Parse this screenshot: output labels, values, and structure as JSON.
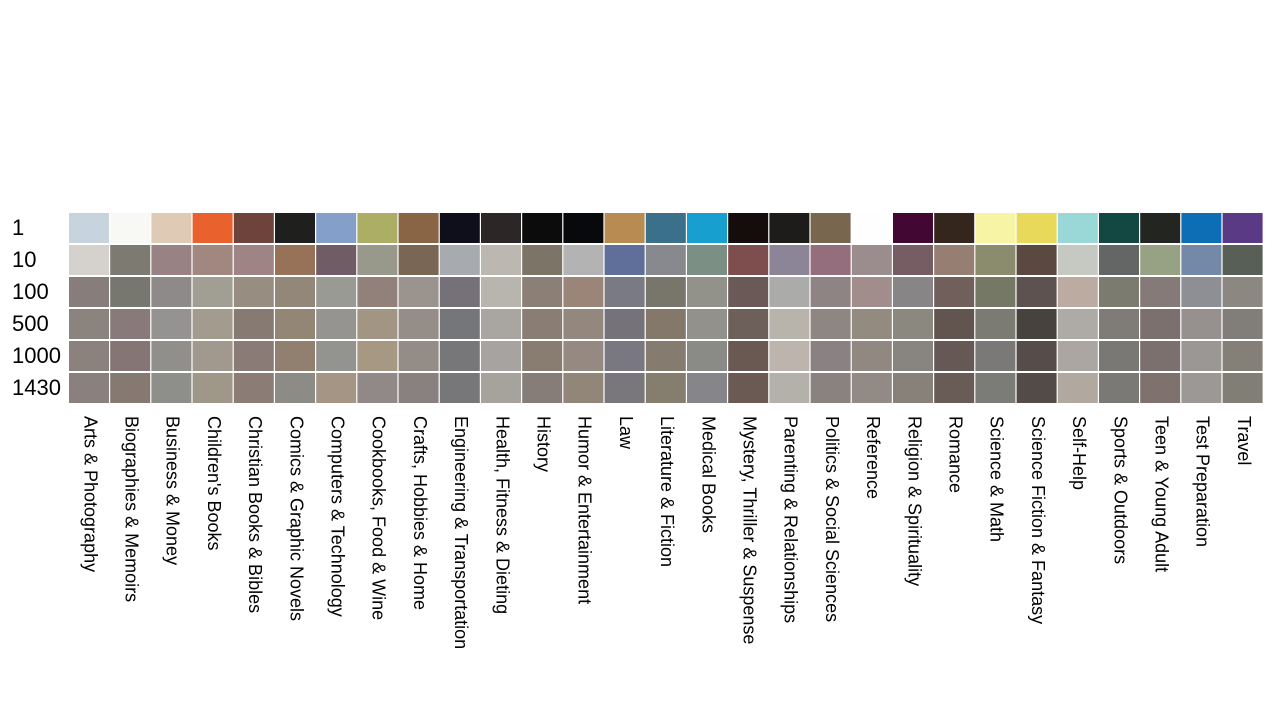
{
  "chart_data": {
    "type": "heatmap",
    "title": "",
    "xlabel": "",
    "ylabel": "",
    "row_labels": [
      "1",
      "10",
      "100",
      "500",
      "1000",
      "1430"
    ],
    "categories": [
      "Arts & Photography",
      "Biographies & Memoirs",
      "Business & Money",
      "Children's Books",
      "Christian Books & Bibles",
      "Comics & Graphic Novels",
      "Computers & Technology",
      "Cookbooks, Food & Wine",
      "Crafts, Hobbies & Home",
      "Engineering & Transportation",
      "Health, Fitness & Dieting",
      "History",
      "Humor & Entertainment",
      "Law",
      "Literature & Fiction",
      "Medical Books",
      "Mystery, Thriller & Suspense",
      "Parenting & Relationships",
      "Politics & Social Sciences",
      "Reference",
      "Religion & Spirituality",
      "Romance",
      "Science & Math",
      "Science Fiction & Fantasy",
      "Self-Help",
      "Sports & Outdoors",
      "Teen & Young Adult",
      "Test Preparation",
      "Travel"
    ],
    "cell_colors": [
      [
        "#c7d3dd",
        "#f8f8f4",
        "#dfcab6",
        "#e9622e",
        "#6e433b",
        "#1f201e",
        "#84a0c9",
        "#adae66",
        "#8a6545",
        "#0f0e1b",
        "#2c2626",
        "#0d0c0c",
        "#08090b",
        "#b88b52",
        "#3a7089",
        "#179fcf",
        "#150d0b",
        "#1e1c1a",
        "#79664e",
        "#fefefe",
        "#430733",
        "#34251d",
        "#f8f4a5",
        "#e8d95a",
        "#9ad7d7",
        "#124841",
        "#232620",
        "#0e6eb5",
        "#5a3a84"
      ],
      [
        "#d5d2cd",
        "#7d7a72",
        "#988283",
        "#a0877f",
        "#9e8484",
        "#977158",
        "#705c65",
        "#98998b",
        "#7a6654",
        "#a7aaaf",
        "#bcb8b1",
        "#7b7467",
        "#b3b3b3",
        "#5f6f99",
        "#87898e",
        "#7c8f85",
        "#7e4d4d",
        "#8c8597",
        "#946e7c",
        "#9b8c8d",
        "#765d63",
        "#967e72",
        "#8b8c6d",
        "#5b4941",
        "#c6c8c2",
        "#646666",
        "#97a184",
        "#7489a8",
        "#585f57"
      ],
      [
        "#877e7b",
        "#77776f",
        "#8d8a89",
        "#a19f93",
        "#978d80",
        "#928779",
        "#9a9a94",
        "#92807b",
        "#9b938d",
        "#767179",
        "#b8b4ae",
        "#8b7f76",
        "#9b8579",
        "#797a84",
        "#78756a",
        "#92928a",
        "#6b5957",
        "#abaca9",
        "#8e8483",
        "#a18e8c",
        "#878585",
        "#715f5c",
        "#767866",
        "#5d524f",
        "#bcaba1",
        "#7c7b70",
        "#857a77",
        "#8e8f94",
        "#8c8781"
      ],
      [
        "#8b837e",
        "#88797a",
        "#949391",
        "#a29b8e",
        "#877a72",
        "#948675",
        "#969491",
        "#a29583",
        "#958e88",
        "#757679",
        "#a9a5a1",
        "#897d74",
        "#94877d",
        "#757379",
        "#83786a",
        "#92918c",
        "#6d5f5a",
        "#b8b4ac",
        "#8e8683",
        "#938a80",
        "#8b8880",
        "#62554f",
        "#7c7b73",
        "#48423f",
        "#aeaba6",
        "#7f7c77",
        "#7b706d",
        "#96918f",
        "#817e79"
      ],
      [
        "#8b817d",
        "#857675",
        "#908f8c",
        "#a1998d",
        "#8a7b77",
        "#917f6f",
        "#939390",
        "#a79884",
        "#948c86",
        "#777779",
        "#a7a3a0",
        "#897c71",
        "#958981",
        "#797880",
        "#857c6f",
        "#8a8a87",
        "#6a5853",
        "#bdb4ae",
        "#8a8282",
        "#918882",
        "#888580",
        "#665854",
        "#7a7977",
        "#564d4b",
        "#aca6a2",
        "#7a7875",
        "#7b706e",
        "#9b9794",
        "#847f77"
      ],
      [
        "#8a817f",
        "#857971",
        "#8e8e8a",
        "#9f9889",
        "#8b7c76",
        "#8c8b86",
        "#a49584",
        "#918987",
        "#898180",
        "#777779",
        "#a6a29c",
        "#877d78",
        "#928679",
        "#79777c",
        "#857d6e",
        "#86868a",
        "#6b5a53",
        "#b3b1aa",
        "#8a827e",
        "#928b85",
        "#888179",
        "#695b56",
        "#7b7b77",
        "#524b48",
        "#b1a8a0",
        "#7b7976",
        "#7e716e",
        "#9c9896",
        "#817e75"
      ]
    ]
  }
}
